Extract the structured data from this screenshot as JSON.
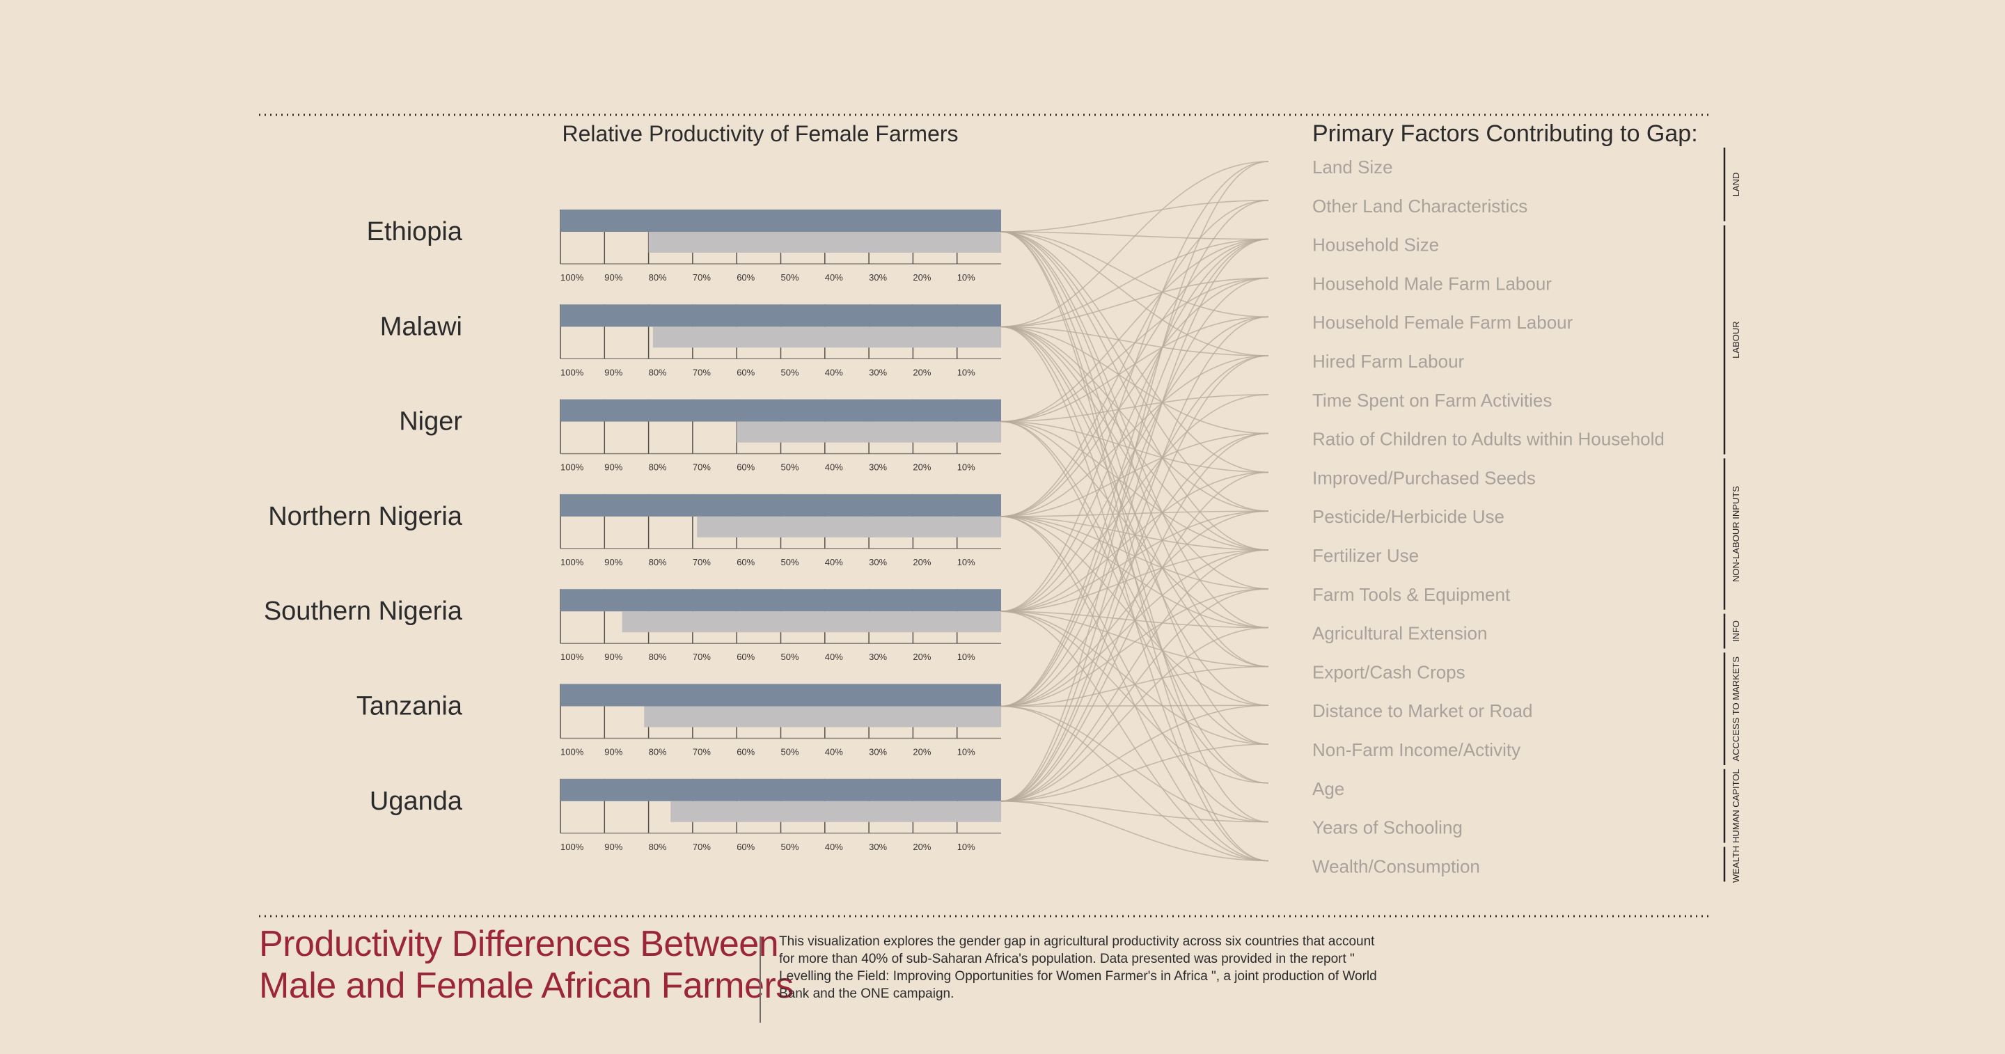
{
  "chart_data": {
    "type": "bar",
    "title": "Relative Productivity of Female Farmers",
    "categories": [
      "Ethiopia",
      "Malawi",
      "Niger",
      "Northern Nigeria",
      "Southern Nigeria",
      "Tanzania",
      "Uganda"
    ],
    "series": [
      {
        "values": [
          100,
          100,
          100,
          100,
          100,
          100,
          100
        ]
      },
      {
        "values": [
          80,
          79,
          60,
          69,
          86,
          81,
          75
        ]
      }
    ],
    "x_ticks": [
      "100%",
      "90%",
      "80%",
      "70%",
      "60%",
      "50%",
      "40%",
      "30%",
      "20%",
      "10%"
    ],
    "xlim": [
      100,
      0
    ],
    "factors_title": "Primary Factors Contributing to Gap:",
    "factors": [
      "Land Size",
      "Other Land Characteristics",
      "Household Size",
      "Household Male Farm Labour",
      "Household Female Farm Labour",
      "Hired Farm Labour",
      "Time Spent on Farm Activities",
      "Ratio of Children to Adults within Household",
      "Improved/Purchased Seeds",
      "Pesticide/Herbicide Use",
      "Fertilizer Use",
      "Farm Tools & Equipment",
      "Agricultural Extension",
      "Export/Cash Crops",
      "Distance to Market or Road",
      "Non-Farm Income/Activity",
      "Age",
      "Years of Schooling",
      "Wealth/Consumption"
    ],
    "factor_groups": [
      {
        "label": "LAND",
        "start": 0,
        "end": 1
      },
      {
        "label": "LABOUR",
        "start": 2,
        "end": 7
      },
      {
        "label": "NON-LABOUR INPUTS",
        "start": 8,
        "end": 11
      },
      {
        "label": "INFO",
        "start": 12,
        "end": 12
      },
      {
        "label": "ACCCESS TO MARKETS",
        "start": 13,
        "end": 15
      },
      {
        "label": "HUMAN CAPITOL",
        "start": 16,
        "end": 17
      },
      {
        "label": "WEALTH",
        "start": 18,
        "end": 18
      }
    ],
    "links": [
      [
        1,
        2,
        4,
        5,
        8,
        9,
        10,
        12,
        13,
        15,
        17,
        18
      ],
      [
        0,
        2,
        3,
        5,
        7,
        9,
        10,
        11,
        13,
        14,
        16,
        18
      ],
      [
        2,
        3,
        4,
        6,
        8,
        10,
        12,
        15,
        16
      ],
      [
        1,
        2,
        3,
        5,
        7,
        9,
        10,
        11,
        12,
        14,
        17,
        18
      ],
      [
        0,
        2,
        4,
        6,
        8,
        9,
        10,
        12,
        13,
        15,
        16,
        18
      ],
      [
        1,
        2,
        3,
        5,
        7,
        9,
        10,
        11,
        13,
        14,
        17,
        18
      ],
      [
        0,
        2,
        4,
        5,
        7,
        8,
        10,
        11,
        12,
        14,
        15,
        17,
        18
      ]
    ]
  },
  "colors": {
    "background": "#eee2d3",
    "male_bar": "#7a8a9c",
    "female_bar": "#c1bfbf",
    "factor_text": "#a9a29a",
    "links": "#b5aa9c",
    "title_red": "#9b2637",
    "dark_text": "#2b2b2b"
  },
  "footer": {
    "title_line1": "Productivity Differences Between",
    "title_line2": "Male and Female African Farmers",
    "description": "This visualization explores the gender gap in agricultural productivity across six countries that account for more than 40% of sub-Saharan Africa's population. Data presented was provided in the report \" Levelling the Field: Improving Opportunities for Women Farmer's in Africa \", a joint production of World Bank and the ONE campaign."
  }
}
